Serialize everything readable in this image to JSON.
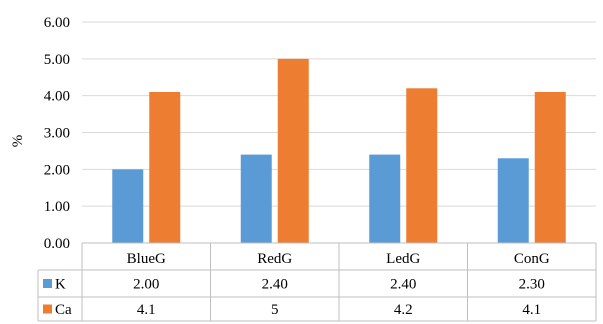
{
  "chart_data": {
    "type": "bar",
    "title": "",
    "xlabel": "",
    "ylabel": "%",
    "ylim": [
      0,
      6
    ],
    "yticks": [
      "0.00",
      "1.00",
      "2.00",
      "3.00",
      "4.00",
      "5.00",
      "6.00"
    ],
    "categories": [
      "BlueG",
      "RedG",
      "LedG",
      "ConG"
    ],
    "grid": true,
    "legend": "data-table",
    "series": [
      {
        "name": "K",
        "color": "#5B9BD5",
        "values": [
          2.0,
          2.4,
          2.4,
          2.3
        ],
        "labels": [
          "2.00",
          "2.40",
          "2.40",
          "2.30"
        ]
      },
      {
        "name": "Ca",
        "color": "#ED7D31",
        "values": [
          4.1,
          5,
          4.2,
          4.1
        ],
        "labels": [
          "4.1",
          "5",
          "4.2",
          "4.1"
        ]
      }
    ]
  }
}
